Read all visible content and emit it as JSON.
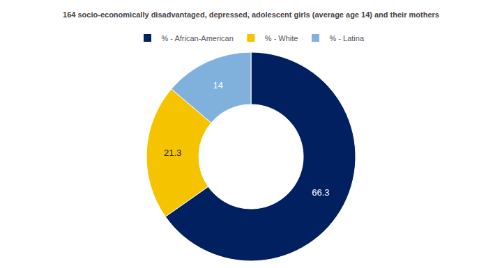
{
  "chart_data": {
    "type": "pie",
    "title": "164 socio-economically disadvantaged, depressed, adolescent girls (average age 14) and their mothers",
    "categories": [
      "% - African-American",
      "% - White",
      "% - Latina"
    ],
    "values": [
      66.3,
      21.3,
      14
    ],
    "colors": [
      "#002060",
      "#f5c300",
      "#7fb1dc"
    ],
    "data_labels": true,
    "legend": "top"
  }
}
